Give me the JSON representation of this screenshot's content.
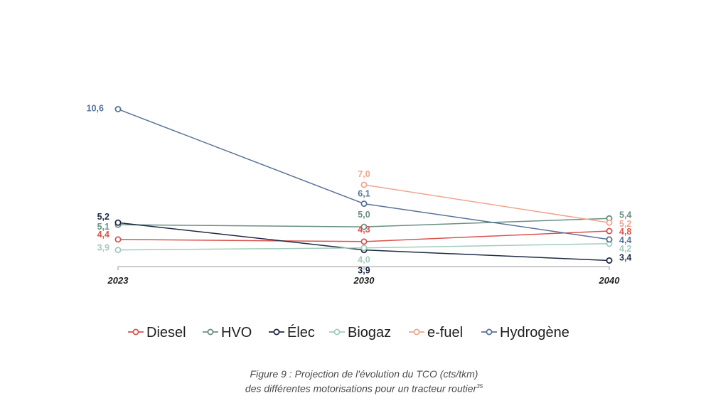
{
  "chart_data": {
    "type": "line",
    "x": [
      "2023",
      "2030",
      "2040"
    ],
    "ylim": [
      3.0,
      11.0
    ],
    "grid": false,
    "legend_position": "bottom",
    "series": [
      {
        "name": "Diesel",
        "color": "#d9534f",
        "values": [
          4.4,
          4.3,
          4.8
        ],
        "labels": [
          "4,4",
          "4,3",
          "4,8"
        ]
      },
      {
        "name": "HVO",
        "color": "#6b8f82",
        "values": [
          5.1,
          5.0,
          5.4
        ],
        "labels": [
          "5,1",
          "5,0",
          "5,4"
        ]
      },
      {
        "name": "Élec",
        "color": "#1e2a44",
        "values": [
          5.2,
          3.9,
          3.4
        ],
        "labels": [
          "5,2",
          "3,9",
          "3,4"
        ]
      },
      {
        "name": "Biogaz",
        "color": "#a3cbbd",
        "values": [
          3.9,
          4.0,
          4.2
        ],
        "labels": [
          "3,9",
          "4,0",
          "4,2"
        ]
      },
      {
        "name": "e-fuel",
        "color": "#f0a58d",
        "values": [
          null,
          7.0,
          5.2
        ],
        "labels": [
          null,
          "7,0",
          "5,2"
        ]
      },
      {
        "name": "Hydrogène",
        "color": "#5a7399",
        "values": [
          10.6,
          6.1,
          4.4
        ],
        "labels": [
          "10,6",
          "6,1",
          "4,4"
        ]
      }
    ]
  },
  "caption": {
    "line1": "Figure 9 : Projection de l'évolution du TCO (cts/tkm)",
    "line2": "des différentes motorisations pour un tracteur routier",
    "footnote": "35"
  }
}
